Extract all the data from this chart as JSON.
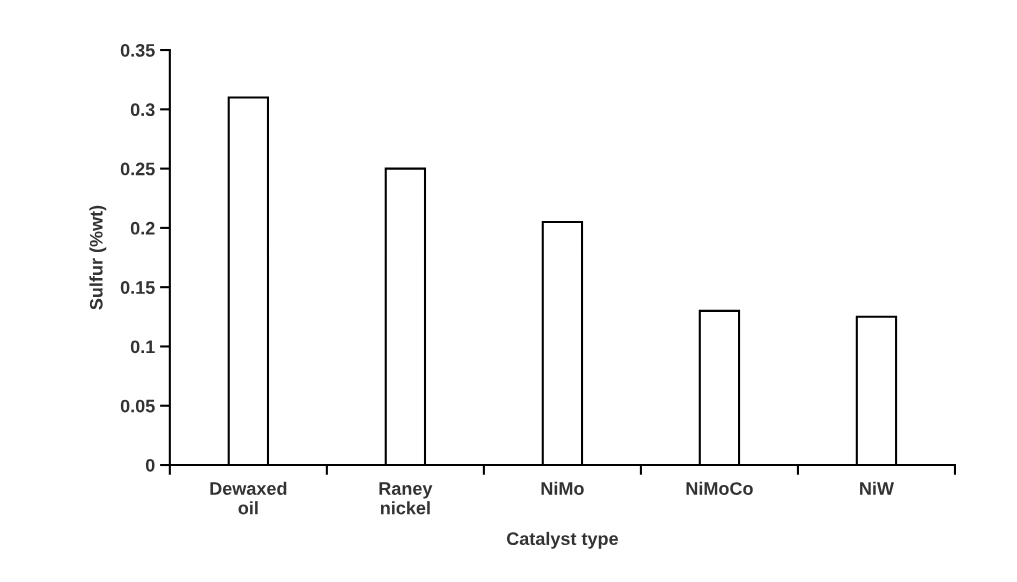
{
  "chart_data": {
    "type": "bar",
    "xlabel": "Catalyst type",
    "ylabel": "Sulfur (%wt)",
    "categories": [
      "Dewaxed\noil",
      "Raney\nnickel",
      "NiMo",
      "NiMoCo",
      "NiW"
    ],
    "values": [
      0.31,
      0.25,
      0.205,
      0.13,
      0.125
    ],
    "color": "#ffffff",
    "ylim": [
      0,
      0.35
    ],
    "yticks": [
      0,
      0.05,
      0.1,
      0.15,
      0.2,
      0.25,
      0.3,
      0.35
    ],
    "grid": false
  }
}
